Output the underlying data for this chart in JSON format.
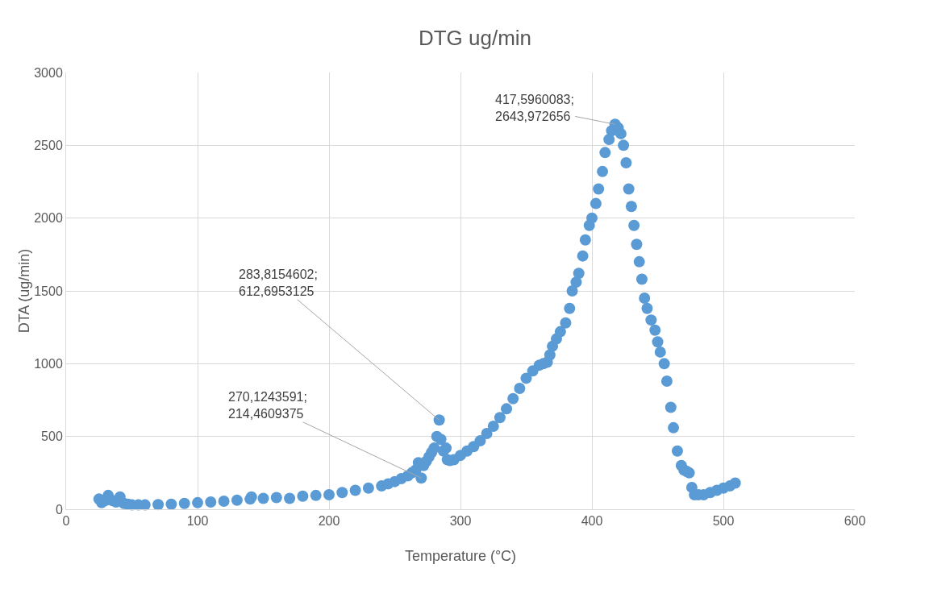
{
  "chart_data": {
    "type": "scatter",
    "title": "DTG ug/min",
    "xlabel": "Temperature (°C)",
    "ylabel": "DTA (ug/min)",
    "x": [
      25,
      27,
      30,
      32,
      35,
      38,
      41,
      44,
      47,
      50,
      55,
      60,
      70,
      80,
      90,
      100,
      110,
      120,
      130,
      140,
      141,
      150,
      160,
      170,
      180,
      190,
      200,
      210,
      220,
      230,
      240,
      245,
      250,
      255,
      260,
      263,
      266,
      268,
      270.1243591,
      272,
      274,
      276,
      278,
      280,
      282,
      283.8154602,
      285,
      287,
      289,
      290,
      292,
      295,
      300,
      305,
      310,
      315,
      320,
      325,
      330,
      335,
      340,
      345,
      350,
      355,
      360,
      363,
      366,
      368,
      370,
      373,
      376,
      380,
      383,
      385,
      388,
      390,
      393,
      395,
      398,
      400,
      403,
      405,
      408,
      410,
      413,
      415,
      417.5960083,
      420,
      422,
      424,
      426,
      428,
      430,
      432,
      434,
      436,
      438,
      440,
      442,
      445,
      448,
      450,
      452,
      455,
      457,
      460,
      462,
      465,
      468,
      470,
      472,
      474,
      476,
      478,
      481,
      485,
      490,
      495,
      500,
      505,
      509
    ],
    "series": [
      {
        "color": "#5b9bd5",
        "values": [
          70,
          45,
          60,
          95,
          60,
          50,
          85,
          40,
          35,
          30,
          30,
          30,
          32,
          35,
          40,
          45,
          50,
          55,
          62,
          70,
          85,
          75,
          80,
          75,
          90,
          95,
          100,
          115,
          130,
          145,
          160,
          175,
          190,
          210,
          230,
          250,
          270,
          320,
          214.4609375,
          300,
          330,
          360,
          390,
          420,
          500,
          612.6953125,
          480,
          400,
          420,
          340,
          335,
          340,
          370,
          400,
          430,
          470,
          520,
          570,
          630,
          690,
          760,
          830,
          900,
          950,
          990,
          1000,
          1010,
          1060,
          1120,
          1170,
          1220,
          1280,
          1380,
          1500,
          1560,
          1620,
          1740,
          1850,
          1950,
          2000,
          2100,
          2200,
          2320,
          2450,
          2540,
          2600,
          2643.972656,
          2620,
          2580,
          2500,
          2380,
          2200,
          2080,
          1950,
          1820,
          1700,
          1580,
          1450,
          1380,
          1300,
          1230,
          1150,
          1080,
          1000,
          880,
          700,
          560,
          400,
          300,
          270,
          260,
          250,
          150,
          100,
          100,
          100,
          115,
          130,
          145,
          160,
          180
        ]
      }
    ],
    "xlim": [
      0,
      600
    ],
    "xticks": [
      0,
      100,
      200,
      300,
      400,
      500,
      600
    ],
    "ylim": [
      0,
      3000
    ],
    "yticks": [
      0,
      500,
      1000,
      1500,
      2000,
      2500,
      3000
    ],
    "grid": true,
    "legend": false,
    "marker": "circle",
    "annotations": [
      {
        "text": "270,1243591;\n214,4609375",
        "x": 270.1243591,
        "y": 214.4609375
      },
      {
        "text": "283,8154602;\n612,6953125",
        "x": 283.8154602,
        "y": 612.6953125
      },
      {
        "text": "417,5960083;\n2643,972656",
        "x": 417.5960083,
        "y": 2643.972656
      }
    ]
  }
}
